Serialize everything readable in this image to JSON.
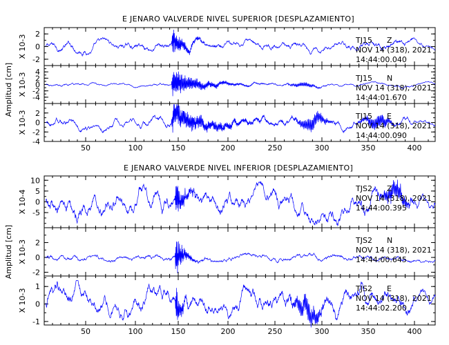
{
  "chart_data": [
    {
      "type": "line",
      "title": "E JENARO VALVERDE NIVEL SUPERIOR [DESPLAZAMIENTO]",
      "ylabel": "Amplitud [cm]",
      "xlim": [
        0,
        415
      ],
      "x_ticks": [
        50,
        100,
        150,
        200,
        250,
        300,
        350,
        400
      ],
      "color": "#0000ff",
      "traces": [
        {
          "station": "TJ15",
          "component": "Z",
          "date": "NOV 14 (318), 2021",
          "time": "14:44:00.040",
          "scale": "X 10-3",
          "ylim": [
            -3,
            3
          ],
          "y_ticks": [
            -2,
            0,
            2
          ],
          "noise": 0.38,
          "event_amp": 2.5,
          "event_decay": 12,
          "event_start": 142,
          "secondary": []
        },
        {
          "station": "TJ15",
          "component": "N",
          "date": "NOV 14 (318), 2021",
          "time": "14:44:01.670",
          "scale": "X 10-3",
          "ylim": [
            -6,
            6
          ],
          "y_ticks": [
            -4,
            -2,
            0,
            2,
            4
          ],
          "noise": 0.28,
          "event_amp": 5.0,
          "event_decay": 25,
          "event_start": 142,
          "secondary": [
            [
              280,
              0.6
            ]
          ]
        },
        {
          "station": "TJ15",
          "component": "E",
          "date": "NOV 14 (318), 2021",
          "time": "14:44:00.090",
          "scale": "X 10-3",
          "ylim": [
            -4,
            4
          ],
          "y_ticks": [
            -4,
            -2,
            0,
            2
          ],
          "noise": 0.5,
          "event_amp": 3.0,
          "event_decay": 40,
          "event_start": 142,
          "secondary": [
            [
              290,
              1.3
            ],
            [
              360,
              1.2
            ]
          ]
        }
      ]
    },
    {
      "type": "line",
      "title": "E JENARO VALVERDE NIVEL INFERIOR [DESPLAZAMIENTO]",
      "ylabel": "Amplitud [cm]",
      "xlim": [
        0,
        415
      ],
      "x_ticks": [
        50,
        100,
        150,
        200,
        250,
        300,
        350,
        400
      ],
      "color": "#0000ff",
      "traces": [
        {
          "station": "TJS2",
          "component": "Z",
          "date": "NOV 14 (318), 2021",
          "time": "14:44:00.395",
          "scale": "X 10-4",
          "ylim": [
            -12,
            12
          ],
          "y_ticks": [
            -5,
            0,
            5,
            10
          ],
          "noise": 2.8,
          "event_amp": 11,
          "event_decay": 8,
          "event_start": 146,
          "secondary": [
            [
              380,
              3.5
            ]
          ]
        },
        {
          "station": "TJS2",
          "component": "N",
          "date": "NOV 14 (318), 2021",
          "time": "14:44:00.645",
          "scale": "X 10-3",
          "ylim": [
            -2.5,
            4
          ],
          "y_ticks": [
            -2,
            0,
            2
          ],
          "noise": 0.25,
          "event_amp": 3.5,
          "event_decay": 7,
          "event_start": 146,
          "secondary": []
        },
        {
          "station": "TJS2",
          "component": "E",
          "date": "NOV 14 (318), 2021",
          "time": "14:44:02.200",
          "scale": "X 10-3",
          "ylim": [
            -1.2,
            1.6
          ],
          "y_ticks": [
            -1,
            0,
            1
          ],
          "noise": 0.35,
          "event_amp": 1.3,
          "event_decay": 6,
          "event_start": 146,
          "secondary": [
            [
              285,
              0.5
            ]
          ]
        }
      ]
    }
  ]
}
